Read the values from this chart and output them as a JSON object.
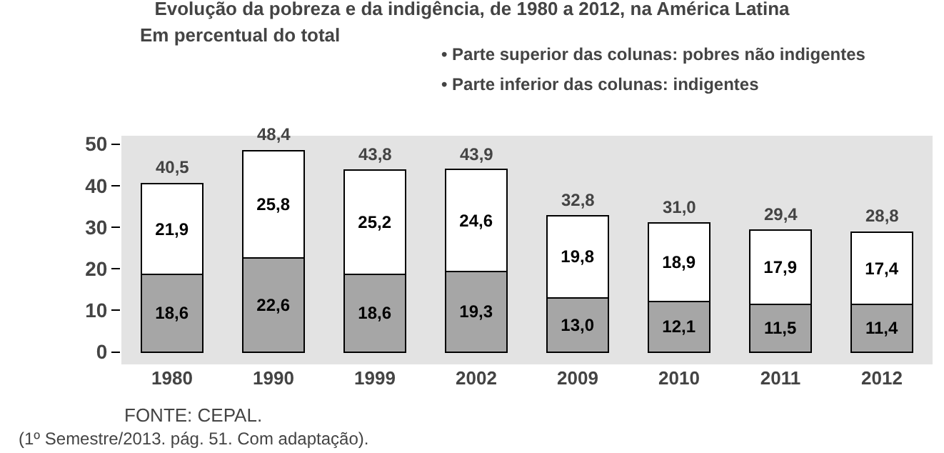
{
  "chart_data": {
    "type": "bar",
    "stacked": true,
    "title": "Evolução da pobreza e da indigência, de 1980 a 2012, na América Latina",
    "subtitle": "Em percentual do total",
    "categories": [
      "1980",
      "1990",
      "1999",
      "2002",
      "2009",
      "2010",
      "2011",
      "2012"
    ],
    "series": [
      {
        "color": "#a6a6a6",
        "values": [
          18.6,
          22.6,
          18.6,
          19.3,
          13.0,
          12.1,
          11.5,
          11.4
        ],
        "value_labels": [
          "18,6",
          "22,6",
          "18,6",
          "19,3",
          "13,0",
          "12,1",
          "11,5",
          "11,4"
        ]
      },
      {
        "color": "#ffffff",
        "values": [
          21.9,
          25.8,
          25.2,
          24.6,
          19.8,
          18.9,
          17.9,
          17.4
        ],
        "value_labels": [
          "21,9",
          "25,8",
          "25,2",
          "24,6",
          "19,8",
          "18,9",
          "17,9",
          "17,4"
        ]
      }
    ],
    "totals": [
      "40,5",
      "48,4",
      "43,8",
      "43,9",
      "32,8",
      "31,0",
      "29,4",
      "28,8"
    ],
    "ylim": [
      -3,
      52
    ],
    "yticks": [
      0,
      10,
      20,
      30,
      40,
      50
    ],
    "grid": false,
    "annotations": [
      "• Parte superior das colunas: pobres não indigentes",
      "• Parte inferior das colunas: indigentes",
      "FONTE: CEPAL.",
      "(1º Semestre/2013. pág. 51. Com adaptação)."
    ]
  }
}
